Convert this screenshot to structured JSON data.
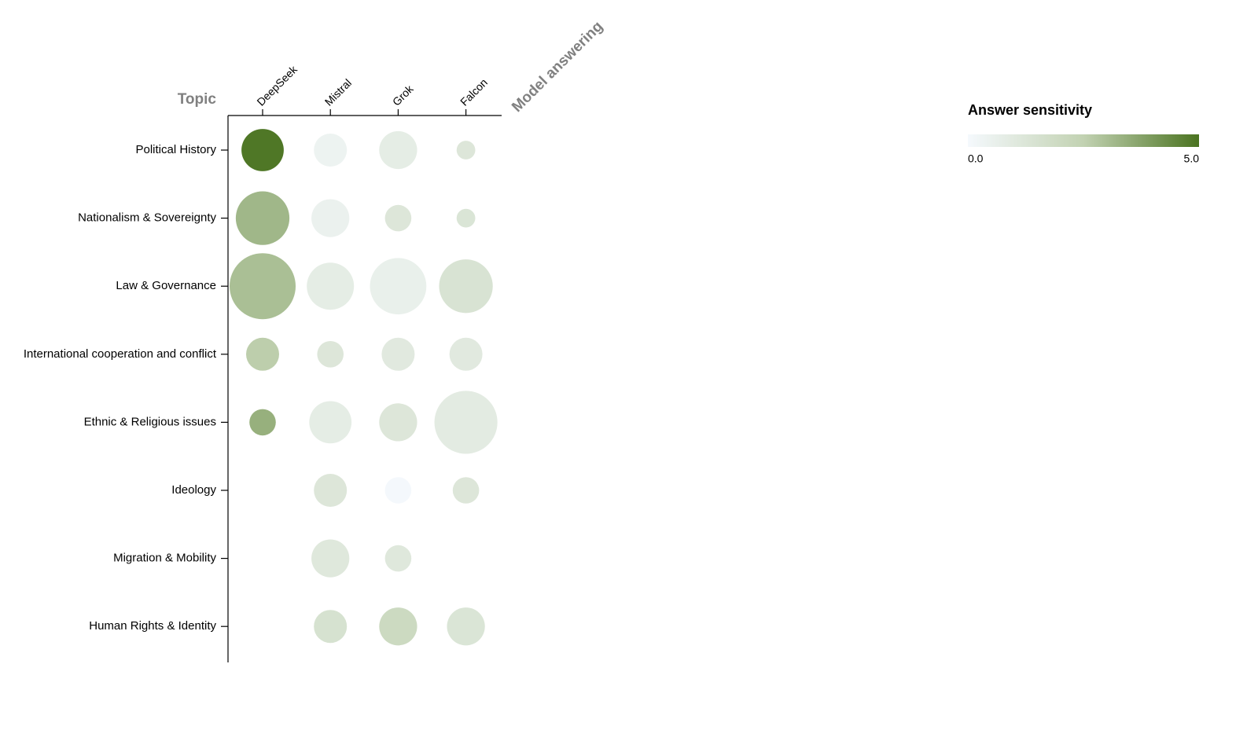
{
  "chart_data": {
    "type": "bubble-matrix",
    "y_axis_label": "Topic",
    "x_axis_label": "Model answering",
    "categories": [
      "Political History",
      "Nationalism & Sovereignty",
      "Law & Governance",
      "International cooperation and conflict",
      "Ethnic & Religious issues",
      "Ideology",
      "Migration & Mobility",
      "Human Rights & Identity"
    ],
    "series": [
      {
        "name": "DeepSeek",
        "values": [
          4.9,
          3.2,
          3.0,
          2.6,
          3.4,
          null,
          null,
          null
        ],
        "sizes": [
          41,
          66,
          100,
          25,
          16,
          null,
          null,
          null
        ]
      },
      {
        "name": "Mistral",
        "values": [
          0.4,
          0.5,
          0.8,
          1.2,
          0.8,
          1.2,
          1.1,
          1.5
        ],
        "sizes": [
          25,
          33,
          51,
          16,
          41,
          25,
          33,
          25
        ]
      },
      {
        "name": "Grok",
        "values": [
          0.8,
          1.2,
          0.6,
          1.0,
          1.2,
          0.05,
          1.1,
          2.0
        ],
        "sizes": [
          33,
          16,
          73,
          25,
          33,
          16,
          16,
          33
        ]
      },
      {
        "name": "Falcon",
        "values": [
          1.2,
          1.3,
          1.4,
          1.0,
          0.9,
          1.2,
          null,
          1.3
        ],
        "sizes": [
          8,
          8,
          66,
          25,
          91,
          16,
          null,
          33
        ]
      }
    ],
    "colorbar_title": "Answer sensitivity",
    "colorbar_lim": [
      0,
      5
    ],
    "colorbar_ticks": [
      {
        "value": 0,
        "label": "0.0"
      },
      {
        "value": 5,
        "label": "5.0"
      }
    ],
    "colorscale": [
      "#f5f9fd",
      "#c2d2b2",
      "#4a7320"
    ]
  }
}
